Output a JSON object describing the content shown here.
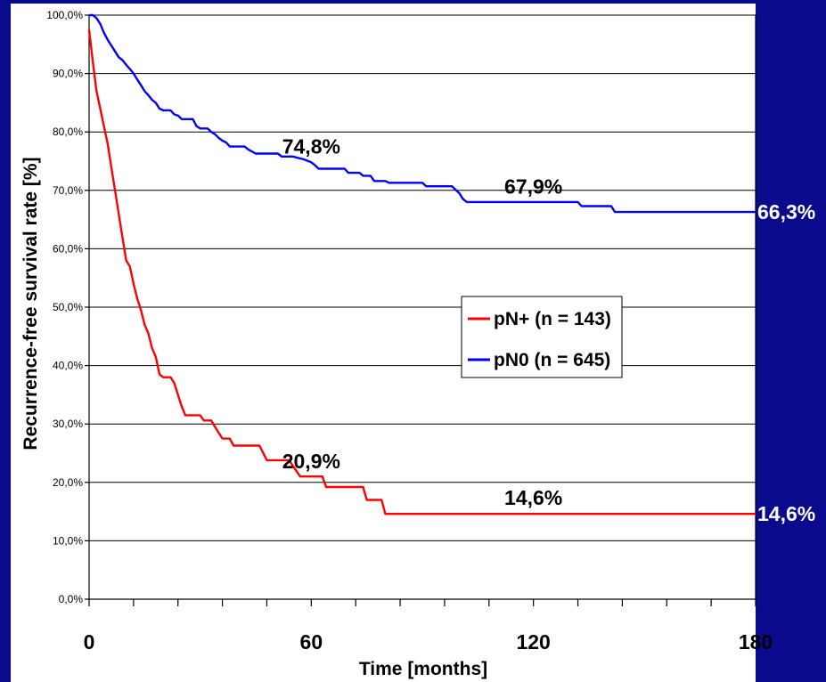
{
  "chart_data": {
    "type": "line",
    "title": "",
    "xlabel": "Time [months]",
    "ylabel": "Recurrence-free survival rate [%]",
    "xlim": [
      0,
      180
    ],
    "ylim": [
      0,
      100
    ],
    "x_ticks": [
      "0",
      "60",
      "120",
      "180"
    ],
    "y_ticks": [
      "0,0%",
      "10,0%",
      "20,0%",
      "30,0%",
      "40,0%",
      "50,0%",
      "60,0%",
      "70,0%",
      "80,0%",
      "90,0%",
      "100,0%"
    ],
    "grid": true,
    "legend_position": "center-right",
    "series": [
      {
        "name": "pN+ (n = 143)",
        "color": "#ff0000",
        "points": [
          [
            0,
            97.5
          ],
          [
            1,
            92
          ],
          [
            2,
            87
          ],
          [
            3,
            84
          ],
          [
            4,
            81
          ],
          [
            5,
            78
          ],
          [
            6,
            74
          ],
          [
            7,
            70
          ],
          [
            8,
            66
          ],
          [
            9,
            62
          ],
          [
            10,
            58
          ],
          [
            11,
            57
          ],
          [
            12,
            54
          ],
          [
            13,
            51.5
          ],
          [
            14,
            49.5
          ],
          [
            15,
            47
          ],
          [
            16,
            45.5
          ],
          [
            17,
            43
          ],
          [
            18,
            41.5
          ],
          [
            19,
            38.5
          ],
          [
            20,
            38
          ],
          [
            22,
            38
          ],
          [
            23,
            37
          ],
          [
            24,
            35
          ],
          [
            25,
            33
          ],
          [
            26,
            31.5
          ],
          [
            30,
            31.5
          ],
          [
            31,
            30.6
          ],
          [
            33,
            30.6
          ],
          [
            34,
            29.5
          ],
          [
            35,
            28.5
          ],
          [
            36,
            27.5
          ],
          [
            38,
            27.5
          ],
          [
            39,
            26.3
          ],
          [
            46,
            26.3
          ],
          [
            48,
            23.8
          ],
          [
            54,
            23.8
          ],
          [
            57,
            21
          ],
          [
            63,
            21
          ],
          [
            64,
            19.2
          ],
          [
            74,
            19.2
          ],
          [
            75,
            17
          ],
          [
            79,
            17
          ],
          [
            80,
            14.6
          ],
          [
            180,
            14.6
          ]
        ]
      },
      {
        "name": "pN0 (n = 645)",
        "color": "#0000ff",
        "points": [
          [
            0,
            100
          ],
          [
            1,
            100
          ],
          [
            2,
            99.5
          ],
          [
            3,
            98.5
          ],
          [
            4,
            97
          ],
          [
            5,
            95.8
          ],
          [
            6,
            94.8
          ],
          [
            7,
            93.8
          ],
          [
            8,
            92.8
          ],
          [
            9,
            92.3
          ],
          [
            10,
            91.5
          ],
          [
            11,
            90.8
          ],
          [
            12,
            90
          ],
          [
            13,
            89
          ],
          [
            14,
            88
          ],
          [
            15,
            87
          ],
          [
            16,
            86.3
          ],
          [
            17,
            85.5
          ],
          [
            18,
            85
          ],
          [
            19,
            84
          ],
          [
            20,
            83.7
          ],
          [
            22,
            83.7
          ],
          [
            23,
            83
          ],
          [
            24,
            82.8
          ],
          [
            25,
            82.2
          ],
          [
            28,
            82.2
          ],
          [
            29,
            81
          ],
          [
            30,
            80.6
          ],
          [
            32,
            80.6
          ],
          [
            33,
            80
          ],
          [
            34,
            79.6
          ],
          [
            35,
            79
          ],
          [
            36,
            78.5
          ],
          [
            37,
            78.2
          ],
          [
            38,
            77.5
          ],
          [
            42,
            77.5
          ],
          [
            43,
            77
          ],
          [
            45,
            76.3
          ],
          [
            51,
            76.3
          ],
          [
            52,
            75.8
          ],
          [
            55,
            75.8
          ],
          [
            58,
            75.3
          ],
          [
            60,
            74.8
          ],
          [
            61,
            74.3
          ],
          [
            62,
            73.7
          ],
          [
            69,
            73.7
          ],
          [
            70,
            73
          ],
          [
            73,
            73
          ],
          [
            74,
            72.5
          ],
          [
            76,
            72.5
          ],
          [
            77,
            71.6
          ],
          [
            80,
            71.6
          ],
          [
            81,
            71.3
          ],
          [
            90,
            71.3
          ],
          [
            91,
            70.7
          ],
          [
            98,
            70.7
          ],
          [
            100,
            69.5
          ],
          [
            101,
            68.5
          ],
          [
            102,
            68
          ],
          [
            132,
            68
          ],
          [
            133,
            67.3
          ],
          [
            141,
            67.3
          ],
          [
            142,
            66.3
          ],
          [
            180,
            66.3
          ]
        ]
      }
    ],
    "annotations": [
      {
        "text": "74,8%",
        "x": 60,
        "y": 74.8
      },
      {
        "text": "67,9%",
        "x": 120,
        "y": 67.9
      },
      {
        "text": "66,3%",
        "x": 180,
        "y": 66.3
      },
      {
        "text": "20,9%",
        "x": 60,
        "y": 20.9
      },
      {
        "text": "14,6%",
        "x": 120,
        "y": 14.6
      },
      {
        "text": "14,6%",
        "x": 180,
        "y": 14.6
      }
    ]
  },
  "colors": {
    "background": "#0a0a8c",
    "plot_area": "#ffffff",
    "pn_plus": "#ff0000",
    "pn0": "#0000ff"
  }
}
